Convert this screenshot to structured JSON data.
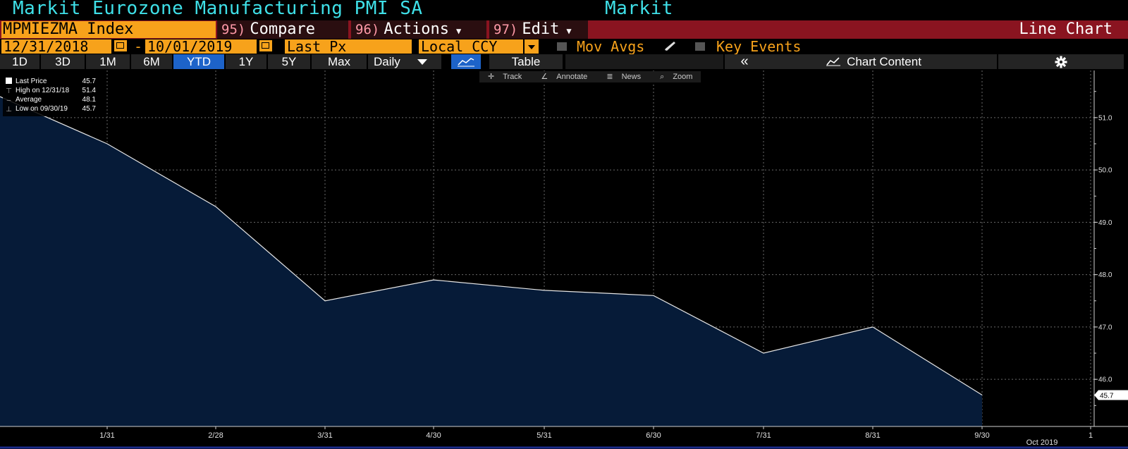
{
  "header": {
    "title": "Markit Eurozone Manufacturing PMI SA",
    "source": "Markit"
  },
  "command_bar": {
    "ticker": "MPMIEZMA Index",
    "compare": {
      "num": "95)",
      "label": "Compare"
    },
    "actions": {
      "num": "96)",
      "label": "Actions"
    },
    "edit": {
      "num": "97)",
      "label": "Edit"
    },
    "chart_type": "Line Chart"
  },
  "options": {
    "start_date": "12/31/2018",
    "end_date": "10/01/2019",
    "date_separator": "-",
    "field": "Last Px",
    "currency": "Local CCY",
    "mov_avgs": "Mov Avgs",
    "key_events": "Key Events"
  },
  "tabs": {
    "periods": [
      "1D",
      "3D",
      "1M",
      "6M",
      "YTD",
      "1Y",
      "5Y",
      "Max"
    ],
    "selected": "YTD",
    "frequency": "Daily",
    "table": "Table",
    "collapse": "«",
    "chart_content": "Chart Content"
  },
  "toolbar": {
    "track": "Track",
    "annotate": "Annotate",
    "news": "News",
    "zoom": "Zoom"
  },
  "legend": [
    {
      "label": "Last Price",
      "value": "45.7"
    },
    {
      "label": "High on 12/31/18",
      "value": "51.4"
    },
    {
      "label": "Average",
      "value": "48.1"
    },
    {
      "label": "Low on 09/30/19",
      "value": "45.7"
    }
  ],
  "colors": {
    "fill": "#061b38",
    "line": "#e6e6e6",
    "accent_orange": "#f7a21b",
    "title_cyan": "#3fe0e8",
    "selected_tab": "#1d63c9"
  },
  "chart_data": {
    "type": "area",
    "x": [
      "12/31",
      "1/31",
      "2/28",
      "3/31",
      "4/30",
      "5/31",
      "6/30",
      "7/31",
      "8/31",
      "9/30"
    ],
    "series": [
      {
        "values": [
          51.4,
          50.5,
          49.3,
          47.5,
          47.9,
          47.7,
          47.6,
          46.5,
          47.0,
          45.7
        ]
      }
    ],
    "x_tick_labels": [
      "1/31",
      "2/28",
      "3/31",
      "4/30",
      "5/31",
      "6/30",
      "7/31",
      "8/31",
      "9/30",
      "1"
    ],
    "x_secondary_label": "Oct 2019",
    "y_ticks": [
      46.0,
      47.0,
      48.0,
      49.0,
      50.0,
      51.0
    ],
    "y_tick_labels": [
      "46.0",
      "47.0",
      "48.0",
      "49.0",
      "50.0",
      "51.0"
    ],
    "ylim": [
      45.1,
      51.9
    ],
    "last_value_label": "45.7",
    "grid": true,
    "y_axis_side": "right"
  }
}
